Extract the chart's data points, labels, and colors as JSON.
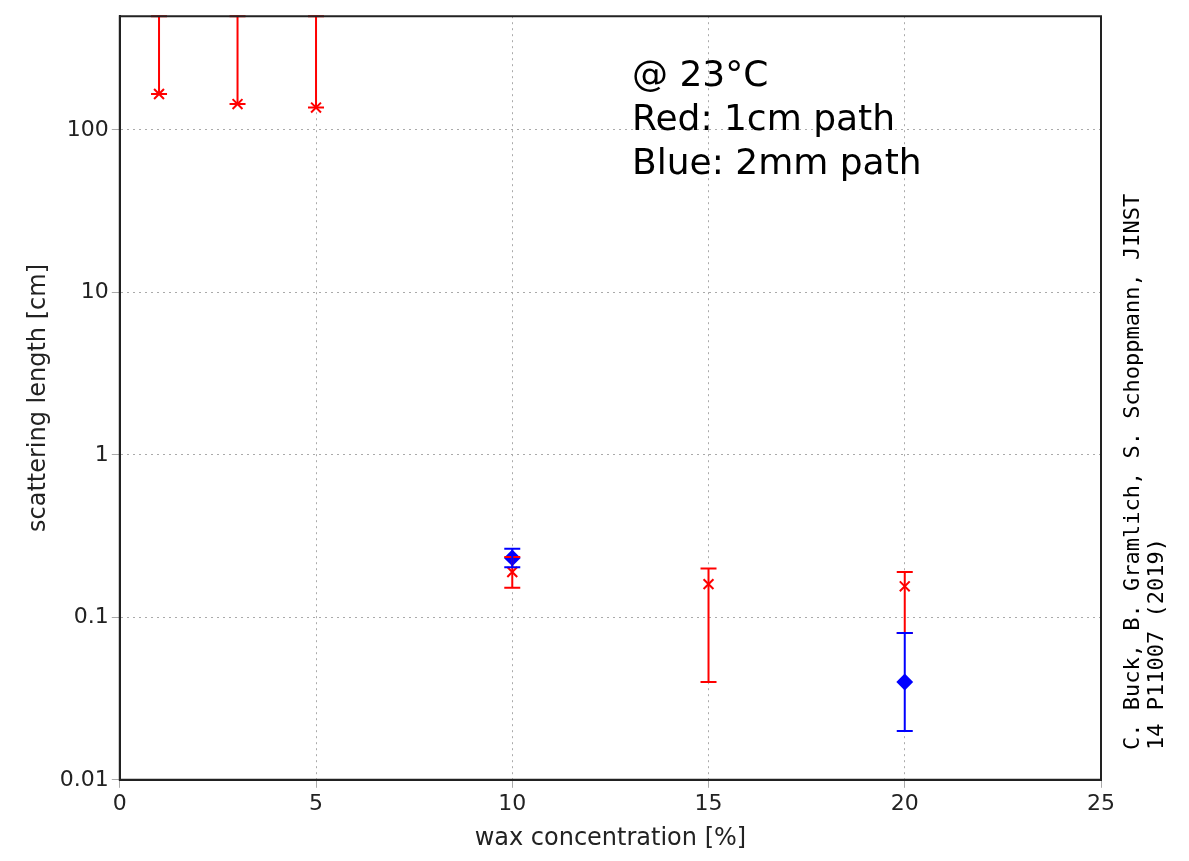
{
  "chart_data": {
    "type": "scatter",
    "xlabel": "wax concentration [%]",
    "ylabel": "scattering length [cm]",
    "xlim": [
      0,
      25
    ],
    "xticks": [
      0,
      5,
      10,
      15,
      20,
      25
    ],
    "ylim": [
      0.01,
      500
    ],
    "yticks": [
      0.01,
      0.1,
      1,
      10,
      100
    ],
    "log": "y",
    "grid": true,
    "legend": false,
    "series": [
      {
        "color": "#ff0000",
        "marker": "cross",
        "x": [
          1,
          3,
          5,
          10,
          15,
          20
        ],
        "values": [
          166,
          144,
          137,
          0.19,
          0.16,
          0.155
        ],
        "errors": [
          [
            166,
            500
          ],
          [
            144,
            500
          ],
          [
            137,
            500
          ],
          [
            0.152,
            0.235
          ],
          [
            0.04,
            0.2
          ],
          [
            0.08,
            0.19
          ]
        ]
      },
      {
        "color": "#0000ff",
        "marker": "diamond",
        "x": [
          10,
          20
        ],
        "values": [
          0.232,
          0.04
        ],
        "errors": [
          [
            0.203,
            0.264
          ],
          [
            0.02,
            0.08
          ]
        ]
      }
    ],
    "annotations": [
      "@ 23°C",
      "Red: 1cm path",
      "Blue: 2mm path",
      "C. Buck, B. Gramlich, S. Schoppmann, JINST 14 P11007 (2019)"
    ]
  }
}
